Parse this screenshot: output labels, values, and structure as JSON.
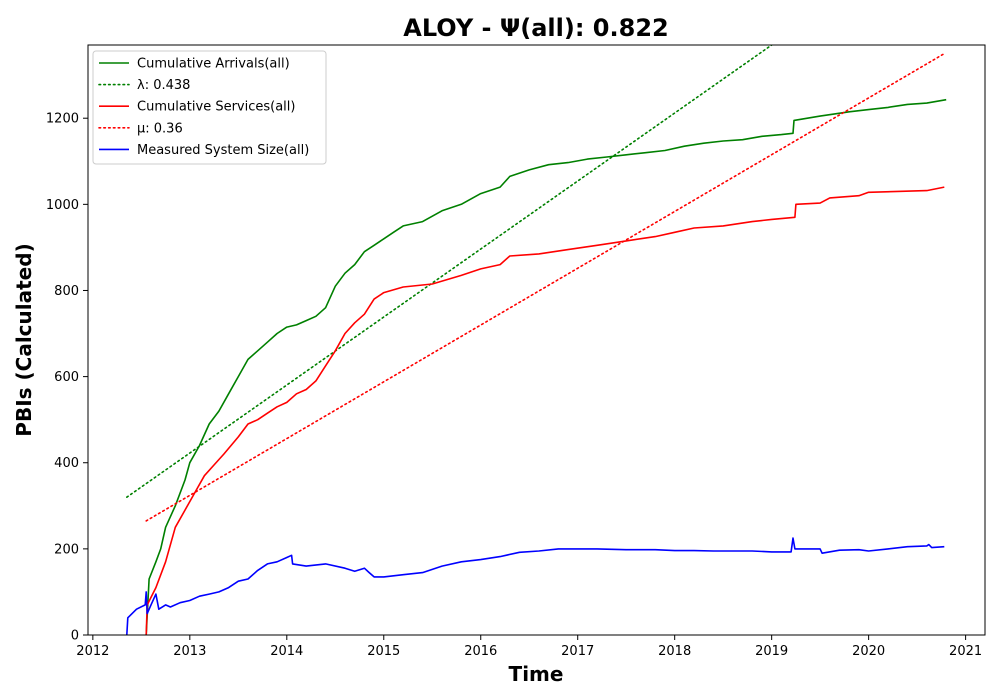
{
  "chart_data": {
    "type": "line",
    "title": "ALOY -  Ψ(all): 0.822",
    "xlabel": "Time",
    "ylabel": "PBIs (Calculated)",
    "xlim": [
      2011.95,
      2021.2
    ],
    "ylim": [
      0,
      1370
    ],
    "x_ticks": [
      "2012",
      "2013",
      "2014",
      "2015",
      "2016",
      "2017",
      "2018",
      "2019",
      "2020",
      "2021"
    ],
    "y_ticks": [
      "0",
      "200",
      "400",
      "600",
      "800",
      "1000",
      "1200"
    ],
    "grid": false,
    "legend_position": "top-left",
    "series": [
      {
        "name": "Cumulative Arrivals(all)",
        "color": "#008000",
        "style": "solid",
        "points": [
          [
            2012.55,
            0
          ],
          [
            2012.58,
            130
          ],
          [
            2012.65,
            170
          ],
          [
            2012.7,
            200
          ],
          [
            2012.75,
            250
          ],
          [
            2012.85,
            300
          ],
          [
            2012.95,
            360
          ],
          [
            2013.0,
            400
          ],
          [
            2013.1,
            440
          ],
          [
            2013.2,
            490
          ],
          [
            2013.3,
            520
          ],
          [
            2013.4,
            560
          ],
          [
            2013.5,
            600
          ],
          [
            2013.6,
            640
          ],
          [
            2013.7,
            660
          ],
          [
            2013.8,
            680
          ],
          [
            2013.9,
            700
          ],
          [
            2014.0,
            715
          ],
          [
            2014.1,
            720
          ],
          [
            2014.2,
            730
          ],
          [
            2014.3,
            740
          ],
          [
            2014.4,
            760
          ],
          [
            2014.5,
            810
          ],
          [
            2014.6,
            840
          ],
          [
            2014.7,
            860
          ],
          [
            2014.8,
            890
          ],
          [
            2014.9,
            905
          ],
          [
            2015.0,
            920
          ],
          [
            2015.1,
            935
          ],
          [
            2015.2,
            950
          ],
          [
            2015.4,
            960
          ],
          [
            2015.6,
            985
          ],
          [
            2015.8,
            1000
          ],
          [
            2016.0,
            1025
          ],
          [
            2016.2,
            1040
          ],
          [
            2016.3,
            1065
          ],
          [
            2016.5,
            1080
          ],
          [
            2016.7,
            1092
          ],
          [
            2016.9,
            1097
          ],
          [
            2017.1,
            1105
          ],
          [
            2017.3,
            1110
          ],
          [
            2017.5,
            1115
          ],
          [
            2017.7,
            1120
          ],
          [
            2017.9,
            1125
          ],
          [
            2018.1,
            1135
          ],
          [
            2018.3,
            1142
          ],
          [
            2018.5,
            1147
          ],
          [
            2018.7,
            1150
          ],
          [
            2018.9,
            1158
          ],
          [
            2019.1,
            1162
          ],
          [
            2019.22,
            1165
          ],
          [
            2019.23,
            1195
          ],
          [
            2019.5,
            1205
          ],
          [
            2019.8,
            1215
          ],
          [
            2020.0,
            1220
          ],
          [
            2020.2,
            1225
          ],
          [
            2020.4,
            1232
          ],
          [
            2020.6,
            1235
          ],
          [
            2020.8,
            1243
          ]
        ]
      },
      {
        "name": "λ: 0.438",
        "color": "#008000",
        "style": "dotted",
        "points": [
          [
            2012.35,
            320
          ],
          [
            2019.0,
            1370
          ]
        ]
      },
      {
        "name": "Cumulative Services(all)",
        "color": "#ff0000",
        "style": "solid",
        "points": [
          [
            2012.55,
            0
          ],
          [
            2012.56,
            70
          ],
          [
            2012.65,
            110
          ],
          [
            2012.75,
            170
          ],
          [
            2012.85,
            250
          ],
          [
            2012.95,
            290
          ],
          [
            2013.05,
            330
          ],
          [
            2013.15,
            370
          ],
          [
            2013.25,
            395
          ],
          [
            2013.35,
            420
          ],
          [
            2013.5,
            460
          ],
          [
            2013.6,
            490
          ],
          [
            2013.7,
            500
          ],
          [
            2013.8,
            515
          ],
          [
            2013.9,
            530
          ],
          [
            2014.0,
            540
          ],
          [
            2014.1,
            560
          ],
          [
            2014.2,
            570
          ],
          [
            2014.3,
            590
          ],
          [
            2014.4,
            625
          ],
          [
            2014.5,
            660
          ],
          [
            2014.6,
            700
          ],
          [
            2014.7,
            725
          ],
          [
            2014.8,
            745
          ],
          [
            2014.9,
            780
          ],
          [
            2015.0,
            795
          ],
          [
            2015.2,
            808
          ],
          [
            2015.5,
            815
          ],
          [
            2015.8,
            835
          ],
          [
            2016.0,
            850
          ],
          [
            2016.2,
            860
          ],
          [
            2016.3,
            880
          ],
          [
            2016.6,
            885
          ],
          [
            2016.9,
            895
          ],
          [
            2017.2,
            905
          ],
          [
            2017.5,
            915
          ],
          [
            2017.8,
            925
          ],
          [
            2018.0,
            935
          ],
          [
            2018.2,
            945
          ],
          [
            2018.5,
            950
          ],
          [
            2018.8,
            960
          ],
          [
            2019.0,
            965
          ],
          [
            2019.24,
            970
          ],
          [
            2019.25,
            1000
          ],
          [
            2019.5,
            1003
          ],
          [
            2019.6,
            1015
          ],
          [
            2019.9,
            1020
          ],
          [
            2020.0,
            1028
          ],
          [
            2020.3,
            1030
          ],
          [
            2020.6,
            1032
          ],
          [
            2020.78,
            1040
          ]
        ]
      },
      {
        "name": "μ: 0.36",
        "color": "#ff0000",
        "style": "dotted",
        "points": [
          [
            2012.55,
            265
          ],
          [
            2020.78,
            1350
          ]
        ]
      },
      {
        "name": "Measured System Size(all)",
        "color": "#0000ff",
        "style": "solid",
        "points": [
          [
            2012.35,
            0
          ],
          [
            2012.36,
            40
          ],
          [
            2012.45,
            60
          ],
          [
            2012.54,
            70
          ],
          [
            2012.55,
            100
          ],
          [
            2012.56,
            50
          ],
          [
            2012.6,
            70
          ],
          [
            2012.65,
            95
          ],
          [
            2012.68,
            60
          ],
          [
            2012.75,
            70
          ],
          [
            2012.8,
            65
          ],
          [
            2012.9,
            75
          ],
          [
            2013.0,
            80
          ],
          [
            2013.1,
            90
          ],
          [
            2013.2,
            95
          ],
          [
            2013.3,
            100
          ],
          [
            2013.4,
            110
          ],
          [
            2013.5,
            125
          ],
          [
            2013.6,
            130
          ],
          [
            2013.7,
            150
          ],
          [
            2013.8,
            165
          ],
          [
            2013.9,
            170
          ],
          [
            2014.0,
            180
          ],
          [
            2014.05,
            185
          ],
          [
            2014.06,
            165
          ],
          [
            2014.2,
            160
          ],
          [
            2014.4,
            165
          ],
          [
            2014.6,
            155
          ],
          [
            2014.7,
            148
          ],
          [
            2014.8,
            155
          ],
          [
            2014.85,
            145
          ],
          [
            2014.9,
            135
          ],
          [
            2015.0,
            135
          ],
          [
            2015.2,
            140
          ],
          [
            2015.4,
            145
          ],
          [
            2015.6,
            160
          ],
          [
            2015.8,
            170
          ],
          [
            2016.0,
            175
          ],
          [
            2016.2,
            182
          ],
          [
            2016.4,
            192
          ],
          [
            2016.6,
            195
          ],
          [
            2016.8,
            200
          ],
          [
            2017.0,
            200
          ],
          [
            2017.2,
            200
          ],
          [
            2017.5,
            198
          ],
          [
            2017.8,
            198
          ],
          [
            2018.0,
            196
          ],
          [
            2018.2,
            196
          ],
          [
            2018.4,
            195
          ],
          [
            2018.6,
            195
          ],
          [
            2018.8,
            195
          ],
          [
            2019.0,
            193
          ],
          [
            2019.2,
            193
          ],
          [
            2019.22,
            225
          ],
          [
            2019.24,
            200
          ],
          [
            2019.5,
            200
          ],
          [
            2019.52,
            190
          ],
          [
            2019.7,
            197
          ],
          [
            2019.9,
            198
          ],
          [
            2020.0,
            195
          ],
          [
            2020.2,
            200
          ],
          [
            2020.4,
            205
          ],
          [
            2020.6,
            207
          ],
          [
            2020.62,
            210
          ],
          [
            2020.65,
            203
          ],
          [
            2020.78,
            205
          ]
        ]
      }
    ]
  }
}
